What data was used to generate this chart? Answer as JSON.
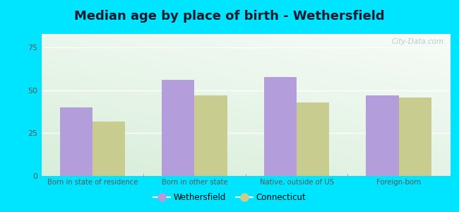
{
  "title": "Median age by place of birth - Wethersfield",
  "categories": [
    "Born in state of residence",
    "Born in other state",
    "Native, outside of US",
    "Foreign-born"
  ],
  "wethersfield_values": [
    40,
    56,
    58,
    47
  ],
  "connecticut_values": [
    32,
    47,
    43,
    46
  ],
  "wethersfield_color": "#b39ddb",
  "connecticut_color": "#c8cc8e",
  "ylim": [
    0,
    83
  ],
  "yticks": [
    0,
    25,
    50,
    75
  ],
  "background_outer": "#00e5ff",
  "grid_color": "#e8e8e8",
  "title_fontsize": 13,
  "legend_label_1": "Wethersfield",
  "legend_label_2": "Connecticut",
  "bar_width": 0.32,
  "watermark": "City-Data.com"
}
